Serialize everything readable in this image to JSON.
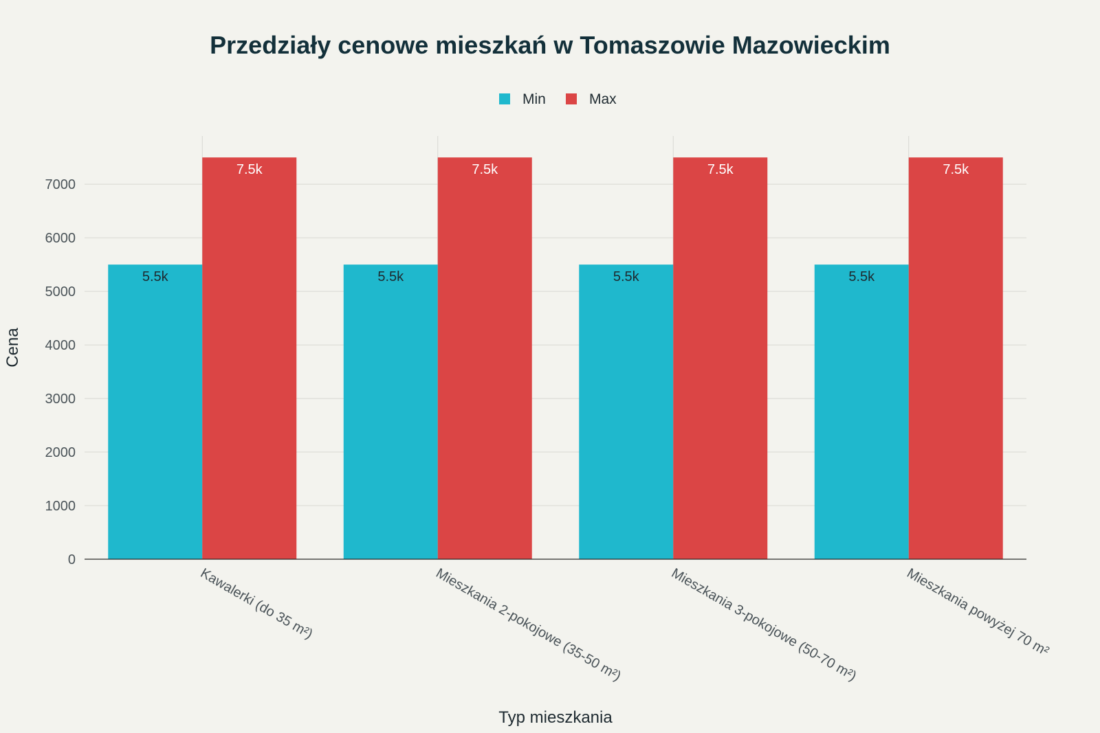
{
  "colors": {
    "background": "#f3f3ee",
    "min": "#1fb8cd",
    "max": "#db4545"
  },
  "chart_data": {
    "type": "bar",
    "title": "Przedziały cenowe mieszkań w Tomaszowie Mazowieckim",
    "xlabel": "Typ mieszkania",
    "ylabel": "Cena",
    "categories": [
      "Kawalerki (do 35 m²)",
      "Mieszkania 2-pokojowe (35-50 m²)",
      "Mieszkania 3-pokojowe (50-70 m²)",
      "Mieszkania powyżej 70 m²"
    ],
    "series": [
      {
        "name": "Min",
        "values": [
          5500,
          5500,
          5500,
          5500
        ],
        "labels": [
          "5.5k",
          "5.5k",
          "5.5k",
          "5.5k"
        ]
      },
      {
        "name": "Max",
        "values": [
          7500,
          7500,
          7500,
          7500
        ],
        "labels": [
          "7.5k",
          "7.5k",
          "7.5k",
          "7.5k"
        ]
      }
    ],
    "ylim": [
      0,
      7900
    ],
    "yticks": [
      0,
      1000,
      2000,
      3000,
      4000,
      5000,
      6000,
      7000
    ],
    "grid": true,
    "legend_position": "top-center"
  }
}
